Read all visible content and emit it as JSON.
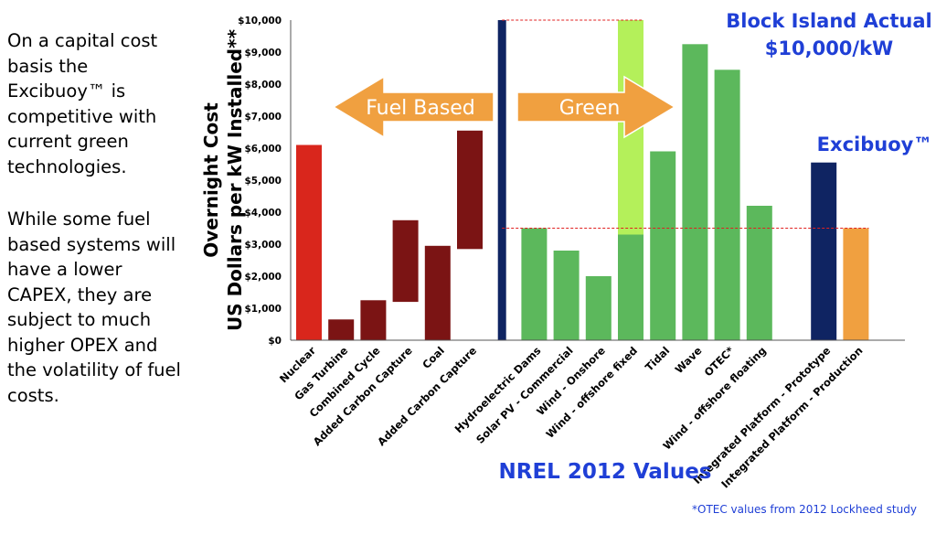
{
  "side_text": {
    "paragraph1": "On a capital cost basis the Excibuoy™ is competitive with current green technologies.",
    "paragraph2": "While some fuel based systems will have a lower CAPEX, they are subject to much higher OPEX and the volatility of fuel costs."
  },
  "footnote": "*OTEC values from 2012 Lockheed study",
  "annotations": {
    "block_island_line1": "Block Island Actual",
    "block_island_line2": "$10,000/kW",
    "excibuoy": "Excibuoy™",
    "nrel": "NREL 2012 Values",
    "fuel_based": "Fuel Based",
    "green": "Green"
  },
  "colors": {
    "nuclear": "#d9261c",
    "fuel": "#7b1414",
    "divider": "#0f2462",
    "green": "#5cb85c",
    "light_green": "#b4f05a",
    "prototype": "#0f2462",
    "production": "#f0a040",
    "arrow": "#f0a040",
    "annotation_blue": "#1f3fd6",
    "reference_line": "#e02020"
  },
  "chart_data": {
    "type": "bar",
    "ylabel_line1": "Overnight Cost",
    "ylabel_line2": "US Dollars per kW Installed**",
    "ylim": [
      0,
      10000
    ],
    "y_ticks": [
      "$0",
      "$1,000",
      "$2,000",
      "$3,000",
      "$4,000",
      "$5,000",
      "$6,000",
      "$7,000",
      "$8,000",
      "$9,000",
      "$10,000"
    ],
    "categories": [
      "Nuclear",
      "Gas Turbine",
      "Combined Cycle",
      "Added Carbon Capture",
      "Coal",
      "Added Carbon Capture",
      "",
      "Hydroelectric Dams",
      "Solar PV - Commercial",
      "Wind - Onshore",
      "Wind - offshore fixed",
      "Tidal",
      "Wave",
      "OTEC*",
      "Wind - offshore floating",
      "",
      "Integrated Platform - Prototype",
      "Integrated Platform - Production"
    ],
    "bars": [
      {
        "category_index": 0,
        "low": 0,
        "high": 6100,
        "color_key": "nuclear"
      },
      {
        "category_index": 1,
        "low": 0,
        "high": 650,
        "color_key": "fuel"
      },
      {
        "category_index": 2,
        "low": 0,
        "high": 1250,
        "color_key": "fuel"
      },
      {
        "category_index": 3,
        "low": 1200,
        "high": 3750,
        "color_key": "fuel"
      },
      {
        "category_index": 4,
        "low": 0,
        "high": 2950,
        "color_key": "fuel"
      },
      {
        "category_index": 5,
        "low": 2850,
        "high": 6550,
        "color_key": "fuel"
      },
      {
        "category_index": 6,
        "low": 0,
        "high": 10000,
        "color_key": "divider"
      },
      {
        "category_index": 7,
        "low": 0,
        "high": 3500,
        "color_key": "green"
      },
      {
        "category_index": 8,
        "low": 0,
        "high": 2800,
        "color_key": "green"
      },
      {
        "category_index": 9,
        "low": 0,
        "high": 2000,
        "color_key": "green"
      },
      {
        "category_index": 10,
        "low": 3300,
        "high": 10000,
        "color_key": "light_green"
      },
      {
        "category_index": 10,
        "low": 0,
        "high": 3300,
        "color_key": "green"
      },
      {
        "category_index": 11,
        "low": 0,
        "high": 5900,
        "color_key": "green"
      },
      {
        "category_index": 12,
        "low": 0,
        "high": 9250,
        "color_key": "green"
      },
      {
        "category_index": 13,
        "low": 0,
        "high": 8450,
        "color_key": "green"
      },
      {
        "category_index": 14,
        "low": 0,
        "high": 4200,
        "color_key": "green"
      },
      {
        "category_index": 16,
        "low": 0,
        "high": 5550,
        "color_key": "prototype"
      },
      {
        "category_index": 17,
        "low": 0,
        "high": 3500,
        "color_key": "production"
      }
    ],
    "reference_lines": [
      {
        "value": 10000,
        "from_category": 6,
        "to_category": 10
      },
      {
        "value": 3500,
        "from_category": 6,
        "to_category": 17
      }
    ],
    "grid": false,
    "legend": "none"
  }
}
